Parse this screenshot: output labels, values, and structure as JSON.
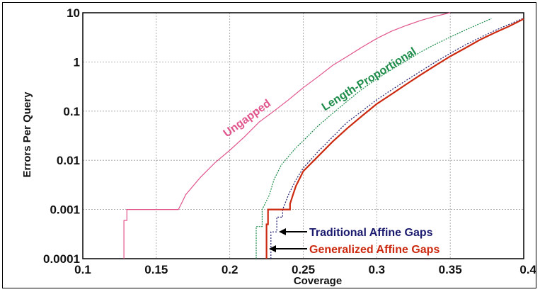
{
  "chart_data": {
    "type": "line",
    "title": "",
    "xlabel": "Coverage",
    "ylabel": "Errors Per Query",
    "xlim": [
      0.1,
      0.4
    ],
    "ylim": [
      0.0001,
      10
    ],
    "yscale": "log",
    "grid": true,
    "x_ticks": [
      0.1,
      0.15,
      0.2,
      0.25,
      0.3,
      0.35,
      0.4
    ],
    "x_tick_labels": [
      "0.1",
      "0.15",
      "0.2",
      "0.25",
      "0.3",
      "0.35",
      "0.4"
    ],
    "y_ticks": [
      0.0001,
      0.001,
      0.01,
      0.1,
      1,
      10
    ],
    "y_tick_labels": [
      "0.0001",
      "0.001",
      "0.01",
      "0.1",
      "1",
      "10"
    ],
    "annotations": {
      "ungapped": "Ungapped",
      "length_proportional": "Length-Proportional",
      "traditional": "Traditional Affine Gaps",
      "generalized": "Generalized Affine Gaps"
    },
    "colors": {
      "ungapped": "#e0558c",
      "length_proportional": "#1e8c4a",
      "traditional": "#1a1a6e",
      "generalized": "#cc2a10"
    },
    "series": [
      {
        "name": "Ungapped",
        "x": [
          0.128,
          0.128,
          0.13,
          0.13,
          0.165,
          0.167,
          0.17,
          0.18,
          0.19,
          0.2,
          0.21,
          0.22,
          0.23,
          0.24,
          0.25,
          0.26,
          0.27,
          0.28,
          0.29,
          0.3,
          0.31,
          0.32,
          0.33,
          0.34,
          0.35
        ],
        "y": [
          0.0001,
          0.0006,
          0.0006,
          0.001,
          0.001,
          0.0013,
          0.002,
          0.0045,
          0.009,
          0.016,
          0.03,
          0.06,
          0.1,
          0.17,
          0.3,
          0.5,
          0.85,
          1.3,
          2.0,
          3.0,
          4.2,
          5.5,
          7.0,
          8.5,
          10
        ]
      },
      {
        "name": "Length-Proportional",
        "x": [
          0.218,
          0.218,
          0.222,
          0.222,
          0.225,
          0.227,
          0.23,
          0.235,
          0.24,
          0.245,
          0.25,
          0.26,
          0.27,
          0.28,
          0.29,
          0.3,
          0.31,
          0.32,
          0.33,
          0.34,
          0.35,
          0.36,
          0.37,
          0.378
        ],
        "y": [
          0.0001,
          0.00045,
          0.00045,
          0.001,
          0.0015,
          0.002,
          0.004,
          0.008,
          0.012,
          0.018,
          0.025,
          0.05,
          0.09,
          0.16,
          0.28,
          0.45,
          0.7,
          1.05,
          1.6,
          2.3,
          3.2,
          4.4,
          6.0,
          7.6
        ]
      },
      {
        "name": "Traditional Affine Gaps",
        "x": [
          0.228,
          0.228,
          0.232,
          0.232,
          0.236,
          0.236,
          0.24,
          0.245,
          0.25,
          0.26,
          0.27,
          0.28,
          0.29,
          0.3,
          0.31,
          0.32,
          0.33,
          0.34,
          0.35,
          0.36,
          0.37,
          0.38,
          0.39,
          0.4
        ],
        "y": [
          0.0001,
          0.00035,
          0.00035,
          0.0007,
          0.0007,
          0.001,
          0.002,
          0.004,
          0.007,
          0.015,
          0.03,
          0.06,
          0.1,
          0.17,
          0.27,
          0.42,
          0.65,
          1.0,
          1.5,
          2.2,
          3.1,
          4.3,
          5.8,
          7.8
        ]
      },
      {
        "name": "Generalized Affine Gaps",
        "x": [
          0.225,
          0.225,
          0.226,
          0.226,
          0.241,
          0.241,
          0.243,
          0.245,
          0.25,
          0.26,
          0.27,
          0.28,
          0.29,
          0.3,
          0.31,
          0.32,
          0.33,
          0.34,
          0.35,
          0.36,
          0.37,
          0.38,
          0.39,
          0.4
        ],
        "y": [
          0.0001,
          0.0005,
          0.0005,
          0.001,
          0.001,
          0.0013,
          0.002,
          0.003,
          0.006,
          0.012,
          0.024,
          0.045,
          0.08,
          0.14,
          0.22,
          0.35,
          0.55,
          0.85,
          1.3,
          1.9,
          2.8,
          3.9,
          5.3,
          7.5
        ]
      }
    ]
  }
}
